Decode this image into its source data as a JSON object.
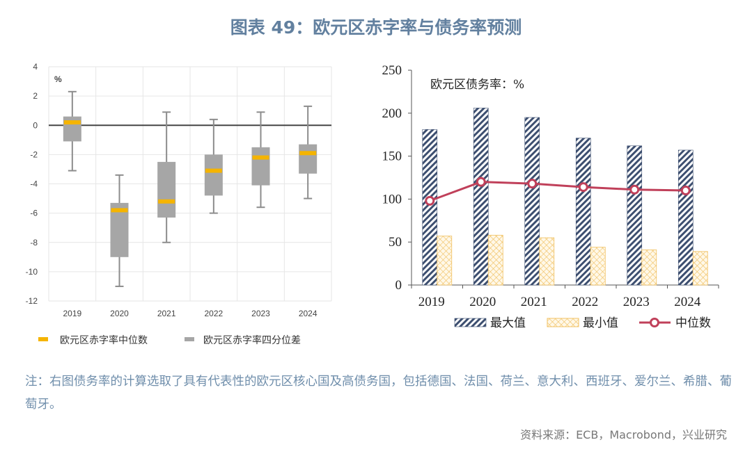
{
  "title": "图表 49：欧元区赤字率与债务率预测",
  "note": "注：右图债务率的计算选取了具有代表性的欧元区核心国及高债务国，包括德国、法国、荷兰、意大利、西班牙、爱尔兰、希腊、葡萄牙。",
  "source": "资料来源：ECB，Macrobond，兴业研究",
  "chart_data": [
    {
      "type": "boxplot",
      "unit_label": "%",
      "categories": [
        "2019",
        "2020",
        "2021",
        "2022",
        "2023",
        "2024"
      ],
      "ylim": [
        -12,
        4
      ],
      "yticks": [
        4,
        2,
        0,
        -2,
        -4,
        -6,
        -8,
        -10,
        -12
      ],
      "grid": true,
      "legend_position": "bottom",
      "series": [
        {
          "name": "欧元区赤字率中位数",
          "color": "#f5b400",
          "values": [
            0.2,
            -5.8,
            -5.2,
            -3.1,
            -2.2,
            -1.9
          ]
        },
        {
          "name": "欧元区赤字率四分位差",
          "color": "#a6a6a6",
          "q1": [
            -1.1,
            -9.0,
            -6.3,
            -4.8,
            -4.1,
            -3.3
          ],
          "q3": [
            0.6,
            -5.3,
            -2.5,
            -2.0,
            -1.5,
            -1.3
          ]
        }
      ],
      "whisker_max": [
        2.3,
        -3.4,
        0.9,
        0.4,
        0.9,
        1.3
      ],
      "whisker_min": [
        -3.1,
        -11.0,
        -8.0,
        -6.0,
        -5.6,
        -5.0
      ]
    },
    {
      "type": "bar",
      "title": "欧元区债务率：%",
      "categories": [
        "2019",
        "2020",
        "2021",
        "2022",
        "2023",
        "2024"
      ],
      "ylim": [
        0,
        250
      ],
      "yticks": [
        0,
        50,
        100,
        150,
        200,
        250
      ],
      "grid": false,
      "legend_position": "bottom",
      "series": [
        {
          "name": "最大值",
          "type": "bar",
          "color": "#3d4f70",
          "values": [
            181,
            206,
            195,
            171,
            162,
            157
          ]
        },
        {
          "name": "最小值",
          "type": "bar",
          "color": "#f0c060",
          "values": [
            57,
            58,
            55,
            44,
            41,
            39
          ]
        },
        {
          "name": "中位数",
          "type": "line",
          "color": "#c0405a",
          "values": [
            98,
            120,
            118,
            114,
            111,
            110
          ]
        }
      ]
    }
  ]
}
